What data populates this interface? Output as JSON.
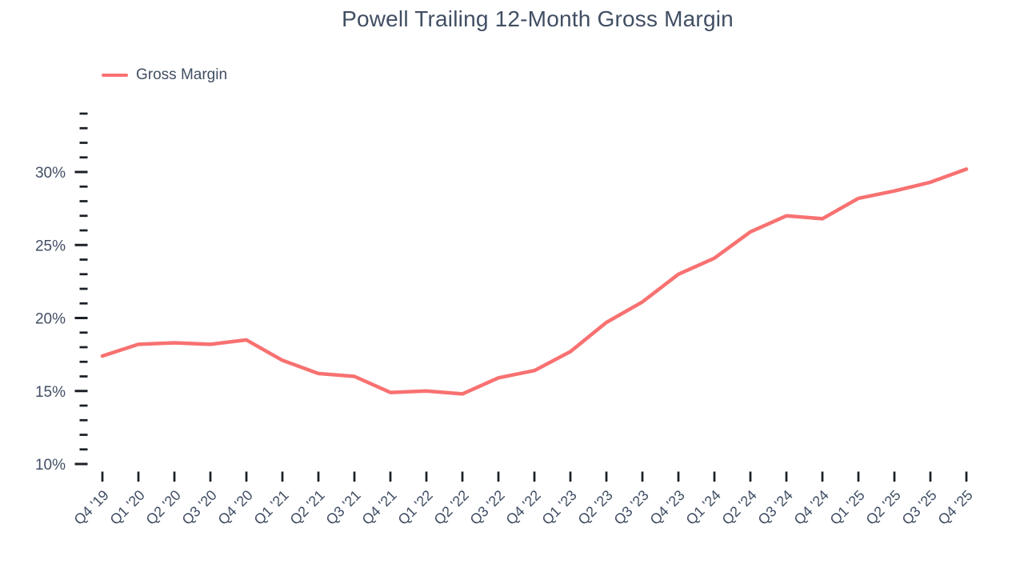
{
  "title": "Powell Trailing 12-Month Gross Margin",
  "legend": {
    "label": "Gross Margin"
  },
  "chart_data": {
    "type": "line",
    "title": "Powell Trailing 12-Month Gross Margin",
    "categories": [
      "Q4 '19",
      "Q1 '20",
      "Q2 '20",
      "Q3 '20",
      "Q4 '20",
      "Q1 '21",
      "Q2 '21",
      "Q3 '21",
      "Q4 '21",
      "Q1 '22",
      "Q2 '22",
      "Q3 '22",
      "Q4 '22",
      "Q1 '23",
      "Q2 '23",
      "Q3 '23",
      "Q4 '23",
      "Q1 '24",
      "Q2 '24",
      "Q3 '24",
      "Q4 '24",
      "Q1 '25",
      "Q2 '25",
      "Q3 '25",
      "Q4 '25"
    ],
    "series": [
      {
        "name": "Gross Margin",
        "color": "#f87171",
        "values": [
          17.4,
          18.2,
          18.3,
          18.2,
          18.5,
          17.1,
          16.2,
          16.0,
          14.9,
          15.0,
          14.8,
          15.9,
          16.4,
          17.7,
          19.7,
          21.1,
          23.0,
          24.1,
          25.9,
          27.0,
          26.8,
          28.2,
          28.7,
          29.3,
          30.2
        ]
      }
    ],
    "xlabel": "",
    "ylabel": "",
    "ylim": [
      10,
      34
    ],
    "y_major_ticks": [
      10,
      15,
      20,
      25,
      30
    ],
    "y_major_tick_labels": [
      "10%",
      "15%",
      "20%",
      "25%",
      "30%"
    ],
    "y_minor_step": 1,
    "y_unit": "%",
    "grid": false,
    "legend_position": "top-left",
    "x_tick_rotation": -45,
    "text_color": "#414e63",
    "tick_color": "#1c2026"
  }
}
